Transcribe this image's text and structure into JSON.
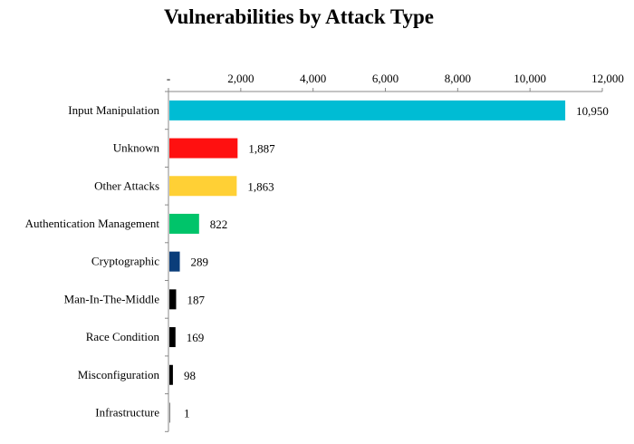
{
  "chart_data": {
    "type": "bar",
    "orientation": "horizontal",
    "title": "Vulnerabilities by Attack Type",
    "xlabel": "",
    "ylabel": "",
    "xlim": [
      0,
      12000
    ],
    "x_axis_position": "top",
    "x_ticks": [
      0,
      2000,
      4000,
      6000,
      8000,
      10000,
      12000
    ],
    "x_tick_labels": [
      "-",
      "2,000",
      "4,000",
      "6,000",
      "8,000",
      "10,000",
      "12,000"
    ],
    "grid": false,
    "categories": [
      "Input Manipulation",
      "Unknown",
      "Other Attacks",
      "Authentication Management",
      "Cryptographic",
      "Man-In-The-Middle",
      "Race Condition",
      "Misconfiguration",
      "Infrastructure"
    ],
    "values": [
      10950,
      1887,
      1863,
      822,
      289,
      187,
      169,
      98,
      1
    ],
    "data_labels": [
      "10,950",
      "1,887",
      "1,863",
      "822",
      "289",
      "187",
      "169",
      "98",
      "1"
    ],
    "colors": [
      "#00BCD4",
      "#FF1010",
      "#FFD035",
      "#00C46A",
      "#0A3D7A",
      "#000000",
      "#000000",
      "#000000",
      "#000000"
    ]
  }
}
